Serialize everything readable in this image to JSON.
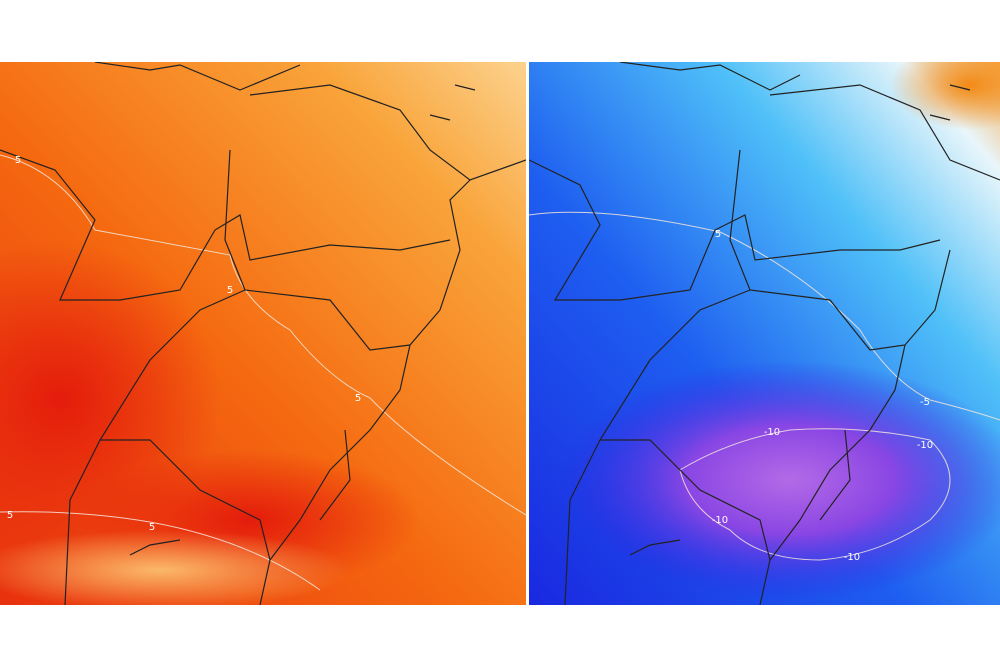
{
  "panels": [
    {
      "contour_labels": [
        "5",
        "5",
        "5",
        "5",
        "5"
      ]
    },
    {
      "contour_labels": [
        "5",
        "-5",
        "-10",
        "-10",
        "-10",
        "-10"
      ]
    }
  ]
}
